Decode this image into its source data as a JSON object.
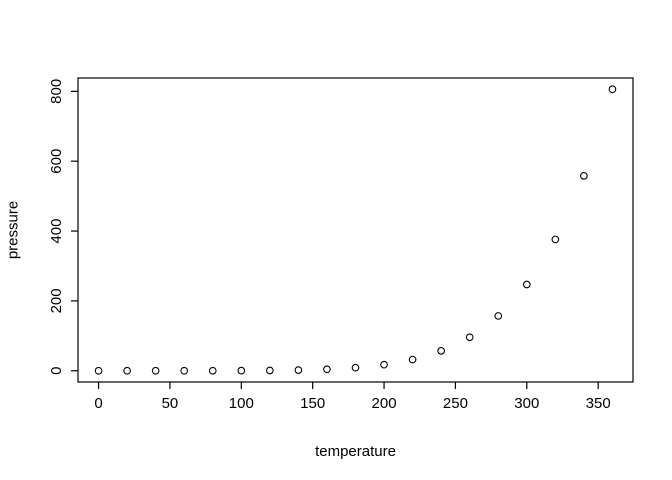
{
  "chart_data": {
    "type": "scatter",
    "title": "",
    "xlabel": "temperature",
    "ylabel": "pressure",
    "x": [
      0,
      20,
      40,
      60,
      80,
      100,
      120,
      140,
      160,
      180,
      200,
      220,
      240,
      260,
      280,
      300,
      320,
      340,
      360
    ],
    "y": [
      0.0002,
      0.0012,
      0.006,
      0.03,
      0.09,
      0.27,
      0.75,
      1.85,
      4.2,
      8.8,
      17.3,
      32.1,
      57,
      96,
      157,
      247,
      376,
      558,
      806
    ],
    "x_ticks": [
      0,
      50,
      100,
      150,
      200,
      250,
      300,
      350
    ],
    "y_ticks": [
      0,
      200,
      400,
      600,
      800
    ],
    "xlim": [
      -14.4,
      374.4
    ],
    "ylim": [
      -32.2,
      838.2
    ],
    "grid": false,
    "legend": null,
    "point_style": "open-circle",
    "colors": {
      "background": "#ffffff",
      "foreground": "#000000"
    }
  }
}
